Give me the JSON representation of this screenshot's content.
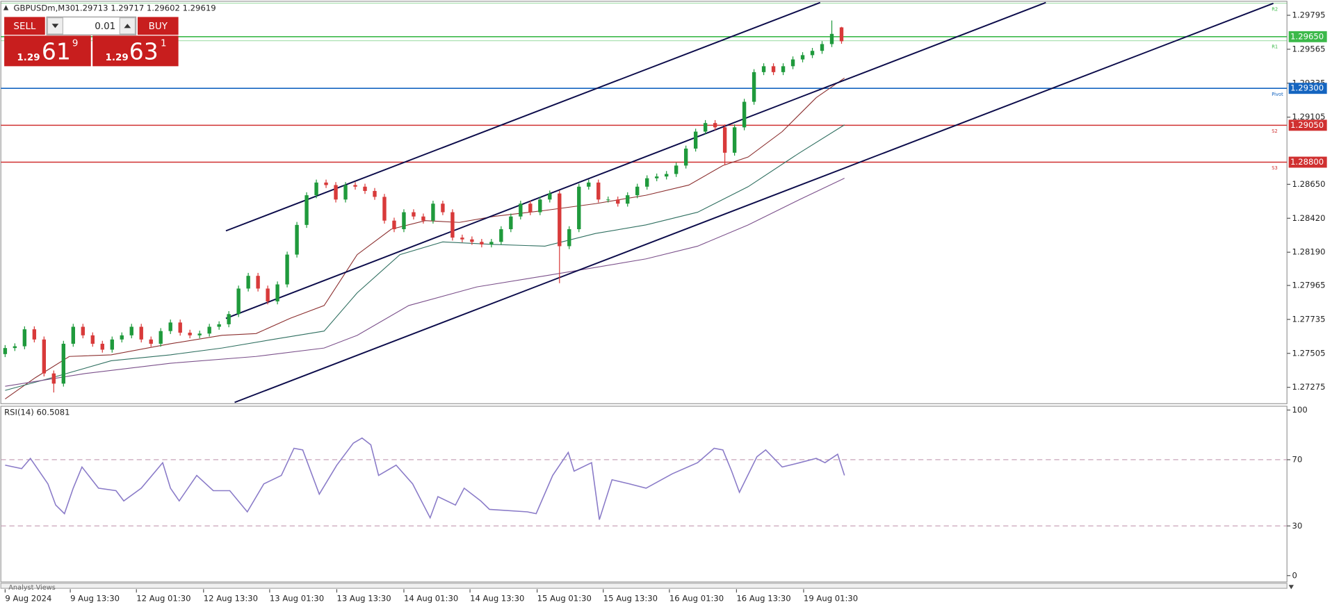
{
  "header": {
    "symbol": "GBPUSDm,M30",
    "quote": "1.29713 1.29717 1.29602 1.29619"
  },
  "trade_panel": {
    "sell": "SELL",
    "lot": "0.01",
    "buy": "BUY",
    "sell_price": {
      "big": "1.29",
      "pips": "61",
      "point": "9"
    },
    "buy_price": {
      "big": "1.29",
      "pips": "63",
      "point": "1"
    }
  },
  "footer": "Analyst Views",
  "chart_data": [
    {
      "type": "candlestick",
      "up_color": "#1f9a3c",
      "down_color": "#d83a3a",
      "xlim": [
        -0.44,
        131.8
      ],
      "xticks": [
        {
          "value": 0,
          "label": "9 Aug 2024"
        },
        {
          "value": 6.7,
          "label": "9 Aug 13:30"
        },
        {
          "value": 13.5,
          "label": "12 Aug 01:30"
        },
        {
          "value": 20.4,
          "label": "12 Aug 13:30"
        },
        {
          "value": 27.2,
          "label": "13 Aug 01:30"
        },
        {
          "value": 34.1,
          "label": "13 Aug 13:30"
        },
        {
          "value": 41.0,
          "label": "14 Aug 01:30"
        },
        {
          "value": 47.8,
          "label": "14 Aug 13:30"
        },
        {
          "value": 54.7,
          "label": "15 Aug 01:30"
        },
        {
          "value": 61.5,
          "label": "15 Aug 13:30"
        },
        {
          "value": 68.3,
          "label": "16 Aug 01:30"
        },
        {
          "value": 75.2,
          "label": "16 Aug 13:30"
        },
        {
          "value": 82.1,
          "label": "19 Aug 01:30"
        }
      ],
      "ylim": [
        1.27167,
        1.29887
      ],
      "yticks": [
        1.29795,
        1.29565,
        1.29335,
        1.29105,
        {
          "value": 1.2865,
          "label": "1.28650"
        },
        {
          "value": 1.2842,
          "label": "1.28420"
        },
        {
          "value": 1.2819,
          "label": "1.28190"
        },
        1.27965,
        1.27735,
        1.27505,
        1.27275
      ],
      "candles": {
        "open": [
          1.275,
          1.27541,
          1.27553,
          1.27668,
          1.27599,
          1.27369,
          1.273,
          1.2757,
          1.27685,
          1.27627,
          1.2757,
          1.2753,
          1.27599,
          1.27627,
          1.27685,
          1.27599,
          1.2757,
          1.27656,
          1.27714,
          1.27645,
          1.27627,
          1.27639,
          1.27685,
          1.27702,
          1.27771,
          1.27944,
          1.2803,
          1.27944,
          1.27857,
          1.27972,
          1.28174,
          1.28375,
          1.28576,
          1.28662,
          1.28645,
          1.28547,
          1.28645,
          1.28634,
          1.28605,
          1.28565,
          1.28404,
          1.28346,
          1.28461,
          1.28432,
          1.28404,
          1.28519,
          1.28461,
          1.28289,
          1.28277,
          1.2826,
          1.28243,
          1.2826,
          1.28346,
          1.28432,
          1.28519,
          1.28461,
          1.28547,
          1.28588,
          1.28231,
          1.28346,
          1.28634,
          1.28662,
          1.28547,
          1.28547,
          1.28519,
          1.28576,
          1.28634,
          1.28691,
          1.28703,
          1.2872,
          1.28777,
          1.28892,
          1.29007,
          1.29065,
          1.29036,
          1.28864,
          1.29036,
          1.29209,
          1.2941,
          1.2945,
          1.2941,
          1.2945,
          1.29496,
          1.29525,
          1.29554,
          1.296,
          1.29713
        ],
        "high": [
          1.27561,
          1.27573,
          1.27688,
          1.27688,
          1.27619,
          1.27389,
          1.2759,
          1.27705,
          1.27705,
          1.27647,
          1.2759,
          1.27619,
          1.27647,
          1.27705,
          1.27705,
          1.27619,
          1.27676,
          1.27734,
          1.27734,
          1.27665,
          1.27659,
          1.27705,
          1.27722,
          1.27791,
          1.27964,
          1.2805,
          1.2805,
          1.27964,
          1.27992,
          1.28194,
          1.28395,
          1.28596,
          1.28682,
          1.28682,
          1.28665,
          1.28665,
          1.28665,
          1.28654,
          1.28625,
          1.28585,
          1.28424,
          1.28481,
          1.28481,
          1.28452,
          1.28539,
          1.28539,
          1.28481,
          1.28309,
          1.28297,
          1.2828,
          1.2828,
          1.28366,
          1.28452,
          1.28539,
          1.28539,
          1.28567,
          1.28608,
          1.28608,
          1.28366,
          1.28654,
          1.28682,
          1.28682,
          1.28567,
          1.28567,
          1.28596,
          1.28654,
          1.28711,
          1.28723,
          1.2874,
          1.28797,
          1.28912,
          1.29027,
          1.29085,
          1.29085,
          1.29056,
          1.29056,
          1.29229,
          1.2943,
          1.2947,
          1.2947,
          1.2947,
          1.29516,
          1.29545,
          1.29574,
          1.2962,
          1.2976,
          1.29717
        ],
        "low": [
          1.2748,
          1.27521,
          1.27533,
          1.27579,
          1.27349,
          1.2724,
          1.2728,
          1.2755,
          1.27607,
          1.2755,
          1.2751,
          1.2751,
          1.27579,
          1.27607,
          1.27579,
          1.2755,
          1.2755,
          1.27636,
          1.27625,
          1.27607,
          1.27607,
          1.27619,
          1.27665,
          1.27682,
          1.27751,
          1.27924,
          1.27924,
          1.27837,
          1.27837,
          1.27952,
          1.28154,
          1.28355,
          1.28556,
          1.28625,
          1.28527,
          1.28527,
          1.28614,
          1.28585,
          1.28545,
          1.28384,
          1.28326,
          1.28326,
          1.28412,
          1.28384,
          1.28384,
          1.28441,
          1.28269,
          1.28257,
          1.2824,
          1.28223,
          1.28223,
          1.2824,
          1.28326,
          1.28412,
          1.28441,
          1.28441,
          1.28527,
          1.2798,
          1.28211,
          1.28326,
          1.28614,
          1.28527,
          1.28527,
          1.28499,
          1.28499,
          1.28556,
          1.28614,
          1.28671,
          1.28683,
          1.287,
          1.28757,
          1.28872,
          1.28987,
          1.29016,
          1.2878,
          1.28844,
          1.29016,
          1.29189,
          1.2939,
          1.2939,
          1.2939,
          1.2943,
          1.29476,
          1.29505,
          1.29534,
          1.2958,
          1.29602
        ],
        "close": [
          1.27541,
          1.27553,
          1.27668,
          1.27599,
          1.27369,
          1.273,
          1.2757,
          1.27685,
          1.27627,
          1.2757,
          1.2753,
          1.27599,
          1.27627,
          1.27685,
          1.27599,
          1.2757,
          1.27656,
          1.27714,
          1.27645,
          1.27627,
          1.27639,
          1.27685,
          1.27702,
          1.27771,
          1.27944,
          1.2803,
          1.27944,
          1.27857,
          1.27972,
          1.28174,
          1.28375,
          1.28576,
          1.28662,
          1.28645,
          1.28547,
          1.28645,
          1.28634,
          1.28605,
          1.28565,
          1.28404,
          1.28346,
          1.28461,
          1.28432,
          1.28404,
          1.28519,
          1.28461,
          1.28289,
          1.28277,
          1.2826,
          1.28243,
          1.2826,
          1.28346,
          1.28432,
          1.28519,
          1.28461,
          1.28547,
          1.28588,
          1.28231,
          1.28346,
          1.28634,
          1.28662,
          1.28547,
          1.28547,
          1.28519,
          1.28576,
          1.28634,
          1.28691,
          1.28703,
          1.2872,
          1.28777,
          1.28892,
          1.29007,
          1.29065,
          1.29036,
          1.28864,
          1.29036,
          1.29209,
          1.2941,
          1.2945,
          1.2941,
          1.2945,
          1.29496,
          1.29525,
          1.29554,
          1.296,
          1.29669,
          1.29619
        ]
      },
      "lines": [
        {
          "color": "#8b2e2e",
          "x": [
            0,
            3.1,
            6.6,
            10.9,
            17.0,
            22.3,
            25.8,
            29.3,
            32.8,
            36.2,
            39.7,
            43.2,
            46.7,
            50.2,
            55.5,
            60.7,
            65.9,
            70.3,
            73.8,
            76.4,
            79.9,
            83.4,
            86.3
          ],
          "values": [
            1.27196,
            1.2734,
            1.27484,
            1.27495,
            1.2757,
            1.27627,
            1.27639,
            1.27742,
            1.27829,
            1.28174,
            1.28346,
            1.28404,
            1.28392,
            1.28432,
            1.28473,
            1.28519,
            1.28576,
            1.28645,
            1.28777,
            1.28835,
            1.29007,
            1.29237,
            1.2937
          ]
        },
        {
          "color": "#2f6f60",
          "x": [
            0,
            4.8,
            10.9,
            17.0,
            22.3,
            27.5,
            32.8,
            36.2,
            40.6,
            45.0,
            50.2,
            55.5,
            60.7,
            65.9,
            71.2,
            76.4,
            81.7,
            86.3
          ],
          "values": [
            1.27254,
            1.2734,
            1.27455,
            1.27495,
            1.27541,
            1.27599,
            1.27656,
            1.27915,
            1.28174,
            1.2826,
            1.28243,
            1.28231,
            1.28317,
            1.28375,
            1.28461,
            1.28634,
            1.28864,
            1.29053
          ]
        },
        {
          "color": "#7a4f8a",
          "x": [
            0,
            8.3,
            17.0,
            25.8,
            32.8,
            36.2,
            41.5,
            48.5,
            55.5,
            60.7,
            65.9,
            71.2,
            76.4,
            81.7,
            86.3
          ],
          "values": [
            1.27282,
            1.27369,
            1.27438,
            1.27484,
            1.27541,
            1.27627,
            1.27829,
            1.27955,
            1.2803,
            1.28087,
            1.28145,
            1.28231,
            1.28375,
            1.28547,
            1.28691
          ]
        }
      ],
      "trend_lines": [
        {
          "color": "#0b0b4a",
          "x": [
            22.7,
            83.8
          ],
          "values": [
            1.28335,
            1.29881
          ]
        },
        {
          "color": "#0b0b4a",
          "x": [
            22.7,
            107.0
          ],
          "values": [
            1.27742,
            1.29881
          ]
        },
        {
          "color": "#0b0b4a",
          "x": [
            23.6,
            130.4
          ],
          "values": [
            1.27173,
            1.29876
          ]
        }
      ],
      "price_levels": [
        {
          "value": 1.2965,
          "label": "1.29650",
          "color": "#3cb94a"
        },
        {
          "value": 1.293,
          "label": "1.29300",
          "color": "#1565c0"
        },
        {
          "value": 1.2905,
          "label": "1.29050",
          "color": "#d03030"
        },
        {
          "value": 1.288,
          "label": "1.28800",
          "color": "#d03030"
        }
      ],
      "pivot_levels": [
        {
          "name": "R2",
          "value": 1.29876,
          "color": "#3cb94a"
        },
        {
          "name": "R1",
          "value": 1.29622,
          "color": "#3cb94a"
        },
        {
          "name": "Pivot",
          "value": 1.293,
          "color": "#1565c0"
        },
        {
          "name": "S2",
          "value": 1.2905,
          "color": "#d03030"
        },
        {
          "name": "S3",
          "value": 1.288,
          "color": "#d03030"
        }
      ]
    },
    {
      "type": "line",
      "title": "RSI(14) 60.5081",
      "xlim": [
        -0.44,
        131.8
      ],
      "ylim": [
        0,
        100
      ],
      "yticks": [
        100,
        70,
        30,
        0
      ],
      "series": [
        {
          "color": "#8a7bc8",
          "x": [
            0,
            1.7,
            2.6,
            4.4,
            5.2,
            6.1,
            7.0,
            7.9,
            9.6,
            11.4,
            12.2,
            14.0,
            16.2,
            17.0,
            17.9,
            19.7,
            21.4,
            23.1,
            24.9,
            26.6,
            28.4,
            29.7,
            30.6,
            32.3,
            34.1,
            35.8,
            36.7,
            37.6,
            38.4,
            40.2,
            41.9,
            43.7,
            44.5,
            46.3,
            47.2,
            48.9,
            49.8,
            53.7,
            54.6,
            56.3,
            57.9,
            58.5,
            60.3,
            61.1,
            62.4,
            64.2,
            65.9,
            68.6,
            71.2,
            72.9,
            73.8,
            74.7,
            75.5,
            77.3,
            78.2,
            79.9,
            81.7,
            83.4,
            84.3,
            85.6,
            86.3
          ],
          "values": [
            66.7,
            64.6,
            70.8,
            55.4,
            42.6,
            37.4,
            52.8,
            65.6,
            52.8,
            51.3,
            45.1,
            52.8,
            68.2,
            52.8,
            45.1,
            60.5,
            51.3,
            51.3,
            38.5,
            55.4,
            60.5,
            76.9,
            75.9,
            49.2,
            66.7,
            80.0,
            83.1,
            79.0,
            60.5,
            66.7,
            55.4,
            34.9,
            47.7,
            42.6,
            52.8,
            45.1,
            40.0,
            38.5,
            37.4,
            60.5,
            74.4,
            63.1,
            68.2,
            33.8,
            57.9,
            55.4,
            52.8,
            61.5,
            68.2,
            76.9,
            75.9,
            63.1,
            50.3,
            71.8,
            75.9,
            65.6,
            68.2,
            70.8,
            68.2,
            73.3,
            60.5081
          ]
        }
      ]
    }
  ]
}
